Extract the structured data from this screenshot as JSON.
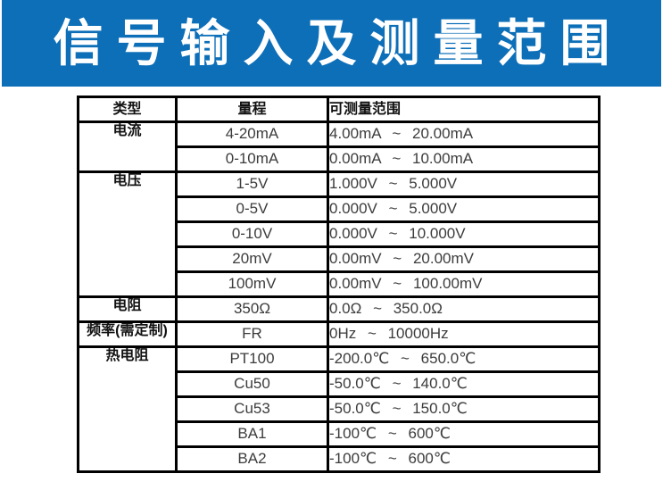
{
  "banner": {
    "title": "信号输入及测量范围"
  },
  "colors": {
    "banner_blue": "#0d6fb8",
    "table_border": "#000000",
    "heading_text": "#111111",
    "value_text": "#3c3c3c",
    "banner_text": "#ffffff"
  },
  "table": {
    "headers": {
      "type": "类型",
      "range": "量程",
      "measurable": "可测量范围"
    },
    "rows": [
      {
        "type": "电流",
        "range": "4-20mA",
        "measurable": "4.00mA ~ 20.00mA"
      },
      {
        "range": "0-10mA",
        "measurable": "0.00mA ~ 10.00mA"
      },
      {
        "type": "电压",
        "range": "1-5V",
        "measurable": "1.000V ~ 5.000V"
      },
      {
        "range": "0-5V",
        "measurable": "0.000V ~ 5.000V"
      },
      {
        "range": "0-10V",
        "measurable": "0.000V ~ 10.000V"
      },
      {
        "range": "20mV",
        "measurable": "0.00mV ~ 20.00mV"
      },
      {
        "range": "100mV",
        "measurable": "0.00mV ~ 100.00mV"
      },
      {
        "type": "电阻",
        "range": "350Ω",
        "measurable": "0.0Ω ~ 350.0Ω"
      },
      {
        "type": "频率(需定制)",
        "range": "FR",
        "measurable": "0Hz ~ 10000Hz"
      },
      {
        "type": "热电阻",
        "range": "PT100",
        "measurable": "-200.0℃ ~ 650.0℃"
      },
      {
        "range": "Cu50",
        "measurable": "-50.0℃ ~ 140.0℃"
      },
      {
        "range": "Cu53",
        "measurable": "-50.0℃ ~ 150.0℃"
      },
      {
        "range": "BA1",
        "measurable": "-100℃ ~ 600℃"
      },
      {
        "range": "BA2",
        "measurable": "-100℃ ~ 600℃"
      }
    ]
  }
}
